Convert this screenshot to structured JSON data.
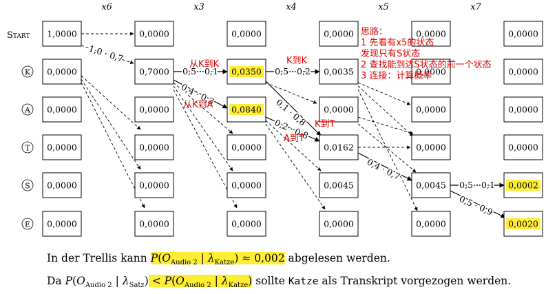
{
  "columns": [
    "x6",
    "x3",
    "x4",
    "x5",
    "x7"
  ],
  "rows": [
    {
      "label": "Start",
      "circle": false
    },
    {
      "label": "K",
      "circle": true
    },
    {
      "label": "A",
      "circle": true
    },
    {
      "label": "T",
      "circle": true
    },
    {
      "label": "S",
      "circle": true
    },
    {
      "label": "E",
      "circle": true
    }
  ],
  "cells": [
    [
      "1,0000",
      "0,0000",
      "0,0000",
      "0,0000",
      "0,0000"
    ],
    [
      "0,0000",
      "0,7000",
      "0,0350",
      "0,0035",
      "0,0000"
    ],
    [
      "0,0000",
      "0,0000",
      "0,0840",
      "0,0000",
      "0,0000"
    ],
    [
      "0,0000",
      "0,0000",
      "0,0000",
      "0,0162",
      "0,0000"
    ],
    [
      "0,0000",
      "0,0000",
      "0,0000",
      "0,0045",
      "0,0002"
    ],
    [
      "0,0000",
      "0,0000",
      "0,0000",
      "0,0000",
      "0,0020"
    ]
  ],
  "highlighted_cells": [
    [
      1,
      2
    ],
    [
      2,
      2
    ],
    [
      4,
      4
    ],
    [
      5,
      4
    ]
  ],
  "highlight_color": "#ffee33",
  "note_color": "#e00000",
  "edge_labels": [
    "1,0 · 0,7",
    "0,5 · 0,1",
    "0,4 · 0,3",
    "0,5 · 0,2",
    "0,1 · 0,8",
    "0,2 · 0,8",
    "0,4 · 0,7",
    "0,5 · 0,1",
    "0,5 · 0,9"
  ],
  "annotations": {
    "k_to_k_1": "从K到K",
    "k_to_a": "从K到A",
    "k_to_k_2": "K到K",
    "k_to_t": "K到T",
    "a_to_t": "A到T",
    "thoughts": [
      "思路：",
      "1 先看有x5的状态",
      "发现只有S状态",
      "2 查找能到达S状态的前一个状态",
      "3 连接：计算概率"
    ]
  },
  "bottom": {
    "line1_prefix": "In der Trellis kann",
    "line1_P": "P",
    "line1_O": "O",
    "line1_sub_audio": "Audio 2",
    "line1_bar": "|",
    "line1_lambda": "λ",
    "line1_sub_model": "Katze",
    "line1_approx": "≈ 0,002",
    "line1_suffix": "abgelesen werden.",
    "line2_prefix": "Da",
    "line2_P1": "P",
    "line2_O1": "O",
    "line2_sub_audio1": "Audio 2",
    "line2_bar1": "|",
    "line2_lambda1": "λ",
    "line2_sub_model1": "Satz",
    "line2_lt": "<",
    "line2_P2": "P",
    "line2_O2": "O",
    "line2_sub_audio2": "Audio 2",
    "line2_bar2": "|",
    "line2_lambda2": "λ",
    "line2_sub_model2": "Katze",
    "line2_mid": "sollte",
    "line2_word": "Katze",
    "line2_suffix": "als Transkript vorgezogen werden."
  }
}
